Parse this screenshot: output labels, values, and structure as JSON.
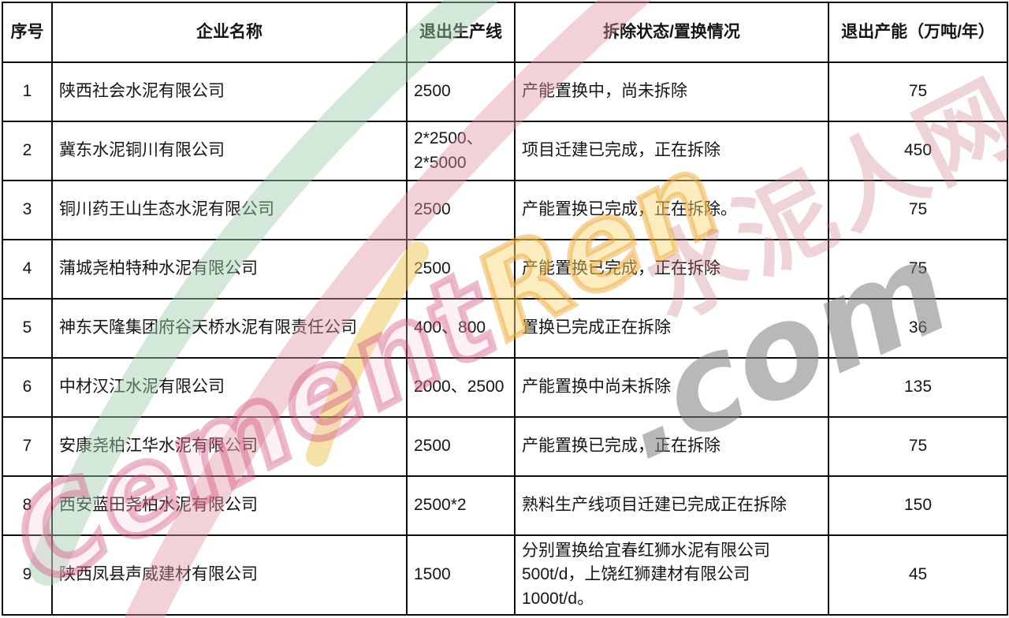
{
  "table": {
    "headers": [
      "序号",
      "企业名称",
      "退出生产线",
      "拆除状态/置换情况",
      "退出产能（万吨/年）"
    ],
    "rows": [
      {
        "no": "1",
        "company": "陕西社会水泥有限公司",
        "line": "2500",
        "status": "产能置换中，尚未拆除",
        "capacity": "75"
      },
      {
        "no": "2",
        "company": "冀东水泥铜川有限公司",
        "line": "2*2500、\n2*5000",
        "status": "项目迁建已完成，正在拆除",
        "capacity": "450"
      },
      {
        "no": "3",
        "company": "铜川药王山生态水泥有限公司",
        "line": "2500",
        "status": "产能置换已完成，正在拆除。",
        "capacity": "75"
      },
      {
        "no": "4",
        "company": "蒲城尧柏特种水泥有限公司",
        "line": "2500",
        "status": "产能置换已完成，正在拆除",
        "capacity": "75"
      },
      {
        "no": "5",
        "company": "神东天隆集团府谷天桥水泥有限责任公司",
        "line": "400、800",
        "status": "置换已完成正在拆除",
        "capacity": "36"
      },
      {
        "no": "6",
        "company": "中材汉江水泥有限公司",
        "line": "2000、2500",
        "status": "产能置换中尚未拆除",
        "capacity": "135"
      },
      {
        "no": "7",
        "company": "安康尧柏江华水泥有限公司",
        "line": "2500",
        "status": "产能置换已完成，正在拆除",
        "capacity": "75"
      },
      {
        "no": "8",
        "company": "西安蓝田尧柏水泥有限公司",
        "line": "2500*2",
        "status": "熟料生产线项目迁建已完成正在拆除",
        "capacity": "150"
      },
      {
        "no": "9",
        "company": "陕西凤县声威建材有限公司",
        "line": "1500",
        "status": "分别置换给宜春红狮水泥有限公司\n500t/d，上饶红狮建材有限公司\n1000t/d。",
        "capacity": "45"
      }
    ]
  },
  "watermark": {
    "brand_en_part1": "Cement",
    "brand_en_part2": "Ren",
    "brand_suffix": ".com",
    "brand_cn": "水泥人网",
    "colors": {
      "green_arc": "#9fcbaa",
      "red_arc": "#e0949e",
      "yellow_arc": "#eec44e",
      "pink_text": "#d04878",
      "yellow_text": "#e9a028",
      "gray_text": "#7e7e7e",
      "cn_pink_text": "#c97684"
    }
  }
}
